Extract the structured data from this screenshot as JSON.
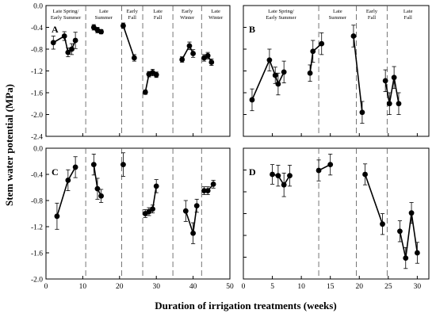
{
  "figure": {
    "ylabel": "Stem water potential (MPa)",
    "xlabel": "Duration of irrigation treatments (weeks)"
  },
  "chart_data": [
    {
      "type": "line",
      "panel": "A",
      "xlim": [
        0,
        50
      ],
      "ylim": [
        -2.4,
        0.0
      ],
      "xticks": [],
      "yticks": [
        "0.0",
        "-0.4",
        "-0.8",
        "-1.2",
        "-1.6",
        "-2.0",
        "-2.4"
      ],
      "boundaries": [
        10.8,
        20.6,
        26.3,
        34.5,
        42.3
      ],
      "season_labels": [
        {
          "lines": [
            "Late Spring/",
            "Early Summer"
          ],
          "x": 5.4
        },
        {
          "lines": [
            "Late",
            "Summer"
          ],
          "x": 15.7
        },
        {
          "lines": [
            "Early",
            "Fall"
          ],
          "x": 23.45
        },
        {
          "lines": [
            "Late",
            "Fall"
          ],
          "x": 30.4
        },
        {
          "lines": [
            "Early",
            "Winter"
          ],
          "x": 38.4
        },
        {
          "lines": [
            "Late",
            "Winter"
          ],
          "x": 46.15
        }
      ],
      "segments": [
        [
          {
            "x": 2,
            "y": -0.68,
            "err": 0.12
          },
          {
            "x": 5,
            "y": -0.56,
            "err": 0.08
          },
          {
            "x": 6,
            "y": -0.86,
            "err": 0.08
          },
          {
            "x": 7,
            "y": -0.8,
            "err": 0.1
          },
          {
            "x": 8,
            "y": -0.64,
            "err": 0.15
          }
        ],
        [
          {
            "x": 13,
            "y": -0.4,
            "err": 0.05
          },
          {
            "x": 14,
            "y": -0.45,
            "err": 0.05
          },
          {
            "x": 15,
            "y": -0.48,
            "err": 0.04
          }
        ],
        [
          {
            "x": 21,
            "y": -0.37,
            "err": 0.05
          },
          {
            "x": 24,
            "y": -0.96,
            "err": 0.06
          }
        ],
        [
          {
            "x": 27,
            "y": -1.59,
            "err": 0.04
          },
          {
            "x": 28,
            "y": -1.26,
            "err": 0.05
          },
          {
            "x": 29,
            "y": -1.23,
            "err": 0.06
          },
          {
            "x": 30,
            "y": -1.27,
            "err": 0.05
          }
        ],
        [
          {
            "x": 37,
            "y": -0.99,
            "err": 0.05
          },
          {
            "x": 39,
            "y": -0.74,
            "err": 0.07
          },
          {
            "x": 40,
            "y": -0.88,
            "err": 0.07
          }
        ],
        [
          {
            "x": 43,
            "y": -0.96,
            "err": 0.06
          },
          {
            "x": 44,
            "y": -0.92,
            "err": 0.06
          },
          {
            "x": 45,
            "y": -1.04,
            "err": 0.06
          }
        ]
      ]
    },
    {
      "type": "line",
      "panel": "B",
      "xlim": [
        0,
        32
      ],
      "ylim": [
        -2.4,
        0.0
      ],
      "xticks": [],
      "yticks": [],
      "boundaries": [
        13,
        19.5,
        24.8
      ],
      "season_labels": [
        {
          "lines": [
            "Late Spring/",
            "Early Summer"
          ],
          "x": 6.5
        },
        {
          "lines": [
            "Late",
            "Summer"
          ],
          "x": 16.25
        },
        {
          "lines": [
            "Early",
            "Fall"
          ],
          "x": 22.15
        },
        {
          "lines": [
            "Late",
            "Fall"
          ],
          "x": 28.4
        }
      ],
      "segments": [
        [
          {
            "x": 1.5,
            "y": -1.73,
            "err": 0.2
          },
          {
            "x": 4.5,
            "y": -1.0,
            "err": 0.2
          },
          {
            "x": 5.5,
            "y": -1.28,
            "err": 0.15
          },
          {
            "x": 6,
            "y": -1.44,
            "err": 0.2
          },
          {
            "x": 7,
            "y": -1.22,
            "err": 0.2
          }
        ],
        [
          {
            "x": 11.5,
            "y": -1.24,
            "err": 0.15
          },
          {
            "x": 12,
            "y": -0.84,
            "err": 0.2
          },
          {
            "x": 13.5,
            "y": -0.7,
            "err": 0.2
          }
        ],
        [
          {
            "x": 19,
            "y": -0.56,
            "err": 0.2
          },
          {
            "x": 20.5,
            "y": -1.96,
            "err": 0.2
          }
        ],
        [
          {
            "x": 24.5,
            "y": -1.38,
            "err": 0.2
          },
          {
            "x": 25.2,
            "y": -1.8,
            "err": 0.2
          },
          {
            "x": 26,
            "y": -1.32,
            "err": 0.2
          },
          {
            "x": 26.8,
            "y": -1.8,
            "err": 0.2
          }
        ]
      ]
    },
    {
      "type": "line",
      "panel": "C",
      "xlim": [
        0,
        50
      ],
      "ylim": [
        -2.0,
        0.0
      ],
      "xticks": [
        "0",
        "10",
        "20",
        "30",
        "40",
        "50"
      ],
      "yticks": [
        "0.0",
        "-0.4",
        "-0.8",
        "-1.2",
        "-1.6",
        "-2.0"
      ],
      "boundaries": [
        10.8,
        20.6,
        26.3,
        34.5,
        42.3
      ],
      "season_labels": [],
      "segments": [
        [
          {
            "x": 3,
            "y": -1.04,
            "err": 0.2
          },
          {
            "x": 6,
            "y": -0.49,
            "err": 0.16
          },
          {
            "x": 8,
            "y": -0.29,
            "err": 0.16
          }
        ],
        [
          {
            "x": 13,
            "y": -0.25,
            "err": 0.16
          },
          {
            "x": 14,
            "y": -0.62,
            "err": 0.16
          },
          {
            "x": 15,
            "y": -0.73,
            "err": 0.1
          }
        ],
        [
          {
            "x": 21,
            "y": -0.25,
            "err": 0.18
          }
        ],
        [
          {
            "x": 27,
            "y": -1.0,
            "err": 0.06
          },
          {
            "x": 28,
            "y": -0.97,
            "err": 0.06
          },
          {
            "x": 29,
            "y": -0.93,
            "err": 0.06
          },
          {
            "x": 30,
            "y": -0.58,
            "err": 0.1
          }
        ],
        [
          {
            "x": 38,
            "y": -0.96,
            "err": 0.16
          },
          {
            "x": 40,
            "y": -1.3,
            "err": 0.16
          },
          {
            "x": 41,
            "y": -0.88,
            "err": 0.1
          }
        ],
        [
          {
            "x": 43,
            "y": -0.65,
            "err": 0.06
          },
          {
            "x": 44,
            "y": -0.65,
            "err": 0.06
          },
          {
            "x": 45.5,
            "y": -0.55,
            "err": 0.06
          }
        ]
      ]
    },
    {
      "type": "line",
      "panel": "D",
      "xlim": [
        0,
        32
      ],
      "ylim": [
        -2.0,
        0.0
      ],
      "xticks": [
        "0",
        "5",
        "10",
        "15",
        "20",
        "25",
        "30"
      ],
      "yticks": [],
      "boundaries": [
        13,
        19.5,
        24.8
      ],
      "season_labels": [],
      "segments": [
        [
          {
            "x": 5,
            "y": -0.4,
            "err": 0.15
          },
          {
            "x": 6,
            "y": -0.42,
            "err": 0.16
          },
          {
            "x": 7,
            "y": -0.56,
            "err": 0.18
          },
          {
            "x": 8,
            "y": -0.42,
            "err": 0.16
          }
        ],
        [
          {
            "x": 13,
            "y": -0.34,
            "err": 0.16
          },
          {
            "x": 15,
            "y": -0.25,
            "err": 0.16
          }
        ],
        [
          {
            "x": 21,
            "y": -0.4,
            "err": 0.16
          },
          {
            "x": 24,
            "y": -1.16,
            "err": 0.16
          }
        ],
        [
          {
            "x": 27,
            "y": -1.27,
            "err": 0.16
          },
          {
            "x": 28,
            "y": -1.68,
            "err": 0.16
          },
          {
            "x": 29,
            "y": -0.99,
            "err": 0.16
          },
          {
            "x": 30,
            "y": -1.6,
            "err": 0.16
          }
        ]
      ]
    }
  ]
}
